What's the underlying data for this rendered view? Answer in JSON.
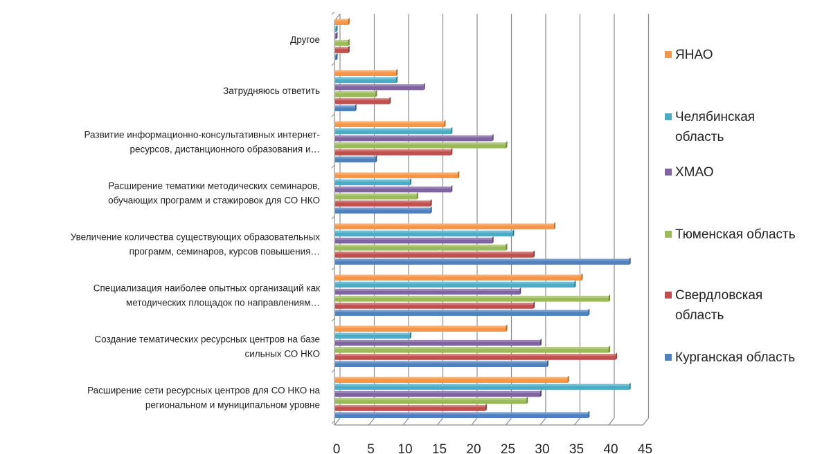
{
  "chart_data": {
    "type": "bar",
    "orientation": "horizontal",
    "style": "3d-clustered",
    "grid": true,
    "legend_position": "right",
    "xlim": [
      0,
      45
    ],
    "x_ticks": [
      "0",
      "5",
      "10",
      "15",
      "20",
      "25",
      "30",
      "35",
      "40",
      "45"
    ],
    "categories": [
      [
        "Расширение сети ресурсных центров для СО НКО на",
        "региональном и муниципальном уровне"
      ],
      [
        "Создание тематических ресурсных центров на базе",
        "сильных СО НКО"
      ],
      [
        "Специализация наиболее опытных организаций как",
        "методических площадок по направлениям…"
      ],
      [
        "Увеличение количества существующих образовательных",
        "программ, семинаров, курсов повышения…"
      ],
      [
        "Расширение тематики методических семинаров,",
        "обучающих программ и стажировок для СО НКО"
      ],
      [
        "Развитие информационно-консультативных интернет-",
        "ресурсов, дистанционного образования и…"
      ],
      [
        "Затрудняюсь ответить"
      ],
      [
        "Другое"
      ]
    ],
    "series": [
      {
        "name": "Курганская область",
        "color": "#4F81BD",
        "values": [
          37,
          31,
          37,
          43,
          14,
          6,
          3,
          0
        ]
      },
      {
        "name": "Свердловская область",
        "color": "#C0504D",
        "values": [
          22,
          41,
          29,
          29,
          14,
          17,
          8,
          2
        ]
      },
      {
        "name": "Тюменская область",
        "color": "#9BBB59",
        "values": [
          28,
          40,
          40,
          25,
          12,
          25,
          6,
          2
        ]
      },
      {
        "name": "ХМАО",
        "color": "#8064A2",
        "values": [
          30,
          30,
          27,
          23,
          17,
          23,
          13,
          0
        ]
      },
      {
        "name": "Челябинская область",
        "color": "#4BACC6",
        "values": [
          43,
          11,
          35,
          26,
          11,
          17,
          9,
          0
        ]
      },
      {
        "name": "ЯНАО",
        "color": "#F79646",
        "values": [
          34,
          25,
          36,
          32,
          18,
          16,
          9,
          2
        ]
      }
    ],
    "legend": [
      {
        "label": [
          "ЯНАО"
        ],
        "color": "#F79646"
      },
      {
        "label": [
          "Челябинская",
          "область"
        ],
        "color": "#4BACC6"
      },
      {
        "label": [
          "ХМАО"
        ],
        "color": "#8064A2"
      },
      {
        "label": [
          "Тюменская область"
        ],
        "color": "#9BBB59"
      },
      {
        "label": [
          "Свердловская",
          "область"
        ],
        "color": "#C0504D"
      },
      {
        "label": [
          "Курганская область"
        ],
        "color": "#4F81BD"
      }
    ]
  }
}
